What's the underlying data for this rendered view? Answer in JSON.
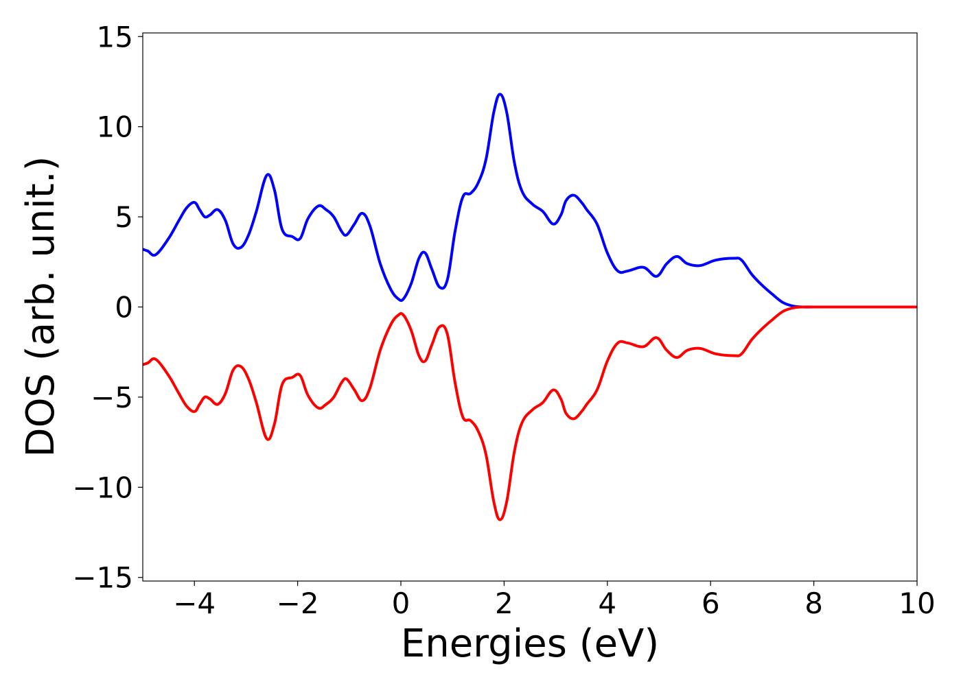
{
  "chart_data": {
    "type": "line",
    "xlabel": "Energies (eV)",
    "ylabel": "DOS (arb. unit.)",
    "xlim": [
      -5,
      10
    ],
    "ylim": [
      -15.2,
      15.2
    ],
    "xticks": [
      -4,
      -2,
      0,
      2,
      4,
      6,
      8,
      10
    ],
    "xtick_labels": [
      "−4",
      "−2",
      "0",
      "2",
      "4",
      "6",
      "8",
      "10"
    ],
    "yticks": [
      15,
      10,
      5,
      0,
      -5,
      -10,
      -15
    ],
    "ytick_labels": [
      "15",
      "10",
      "5",
      "0",
      "−5",
      "−10",
      "−15"
    ],
    "grid": false,
    "legend": "none",
    "series": [
      {
        "color": "#0000ff",
        "x": [
          -5.0,
          -4.9,
          -4.75,
          -4.5,
          -4.3,
          -4.15,
          -4.0,
          -3.9,
          -3.8,
          -3.7,
          -3.55,
          -3.4,
          -3.25,
          -3.1,
          -2.95,
          -2.8,
          -2.6,
          -2.45,
          -2.3,
          -2.1,
          -1.95,
          -1.8,
          -1.6,
          -1.45,
          -1.3,
          -1.15,
          -1.05,
          -0.9,
          -0.75,
          -0.6,
          -0.4,
          -0.2,
          -0.05,
          0.05,
          0.2,
          0.35,
          0.47,
          0.6,
          0.75,
          0.9,
          1.05,
          1.2,
          1.35,
          1.5,
          1.65,
          1.8,
          1.92,
          2.05,
          2.2,
          2.35,
          2.55,
          2.75,
          2.95,
          3.1,
          3.2,
          3.35,
          3.5,
          3.6,
          3.8,
          4.0,
          4.2,
          4.4,
          4.7,
          4.95,
          5.15,
          5.35,
          5.55,
          5.8,
          6.1,
          6.45,
          6.6,
          6.8,
          7.0,
          7.2,
          7.4,
          7.6,
          7.8,
          8.0,
          8.5,
          9.0,
          10.0
        ],
        "values": [
          3.2,
          3.1,
          2.9,
          3.8,
          4.8,
          5.5,
          5.8,
          5.4,
          5.0,
          5.1,
          5.4,
          4.8,
          3.5,
          3.3,
          4.0,
          5.3,
          7.3,
          6.5,
          4.3,
          3.9,
          3.8,
          4.9,
          5.6,
          5.4,
          5.0,
          4.2,
          4.0,
          4.6,
          5.2,
          4.5,
          2.4,
          1.0,
          0.45,
          0.45,
          1.3,
          2.7,
          3.0,
          2.1,
          1.1,
          1.5,
          4.2,
          6.1,
          6.3,
          6.9,
          8.2,
          10.8,
          11.8,
          10.8,
          8.0,
          6.4,
          5.7,
          5.3,
          4.6,
          5.1,
          5.9,
          6.2,
          5.8,
          5.4,
          4.6,
          3.0,
          2.0,
          2.0,
          2.2,
          1.7,
          2.4,
          2.8,
          2.4,
          2.3,
          2.6,
          2.7,
          2.6,
          1.8,
          1.2,
          0.7,
          0.25,
          0.05,
          0.0,
          0.0,
          0.0,
          0.0,
          0.0
        ]
      },
      {
        "color": "#ff0000",
        "x": [
          -5.0,
          -4.9,
          -4.75,
          -4.5,
          -4.3,
          -4.15,
          -4.0,
          -3.9,
          -3.8,
          -3.7,
          -3.55,
          -3.4,
          -3.25,
          -3.1,
          -2.95,
          -2.8,
          -2.6,
          -2.45,
          -2.3,
          -2.1,
          -1.95,
          -1.8,
          -1.6,
          -1.45,
          -1.3,
          -1.15,
          -1.05,
          -0.9,
          -0.75,
          -0.6,
          -0.4,
          -0.2,
          -0.05,
          0.05,
          0.2,
          0.35,
          0.47,
          0.6,
          0.75,
          0.9,
          1.05,
          1.2,
          1.35,
          1.5,
          1.65,
          1.8,
          1.92,
          2.05,
          2.2,
          2.35,
          2.55,
          2.75,
          2.95,
          3.1,
          3.2,
          3.35,
          3.5,
          3.6,
          3.8,
          4.0,
          4.2,
          4.4,
          4.7,
          4.95,
          5.15,
          5.35,
          5.55,
          5.8,
          6.1,
          6.45,
          6.6,
          6.8,
          7.0,
          7.2,
          7.4,
          7.6,
          7.8,
          8.0,
          8.5,
          9.0,
          10.0
        ],
        "values": [
          -3.2,
          -3.1,
          -2.9,
          -3.8,
          -4.8,
          -5.5,
          -5.8,
          -5.4,
          -5.0,
          -5.1,
          -5.4,
          -4.8,
          -3.5,
          -3.3,
          -4.0,
          -5.3,
          -7.3,
          -6.5,
          -4.3,
          -3.9,
          -3.8,
          -4.9,
          -5.6,
          -5.4,
          -5.0,
          -4.2,
          -4.0,
          -4.6,
          -5.2,
          -4.5,
          -2.4,
          -1.0,
          -0.45,
          -0.45,
          -1.3,
          -2.7,
          -3.0,
          -2.1,
          -1.1,
          -1.5,
          -4.2,
          -6.1,
          -6.3,
          -6.9,
          -8.2,
          -10.8,
          -11.8,
          -10.8,
          -8.0,
          -6.4,
          -5.7,
          -5.3,
          -4.6,
          -5.1,
          -5.9,
          -6.2,
          -5.8,
          -5.4,
          -4.6,
          -3.0,
          -2.0,
          -2.0,
          -2.2,
          -1.7,
          -2.4,
          -2.8,
          -2.4,
          -2.3,
          -2.6,
          -2.7,
          -2.6,
          -1.8,
          -1.2,
          -0.7,
          -0.25,
          -0.05,
          0.0,
          0.0,
          0.0,
          0.0,
          0.0
        ]
      }
    ]
  }
}
